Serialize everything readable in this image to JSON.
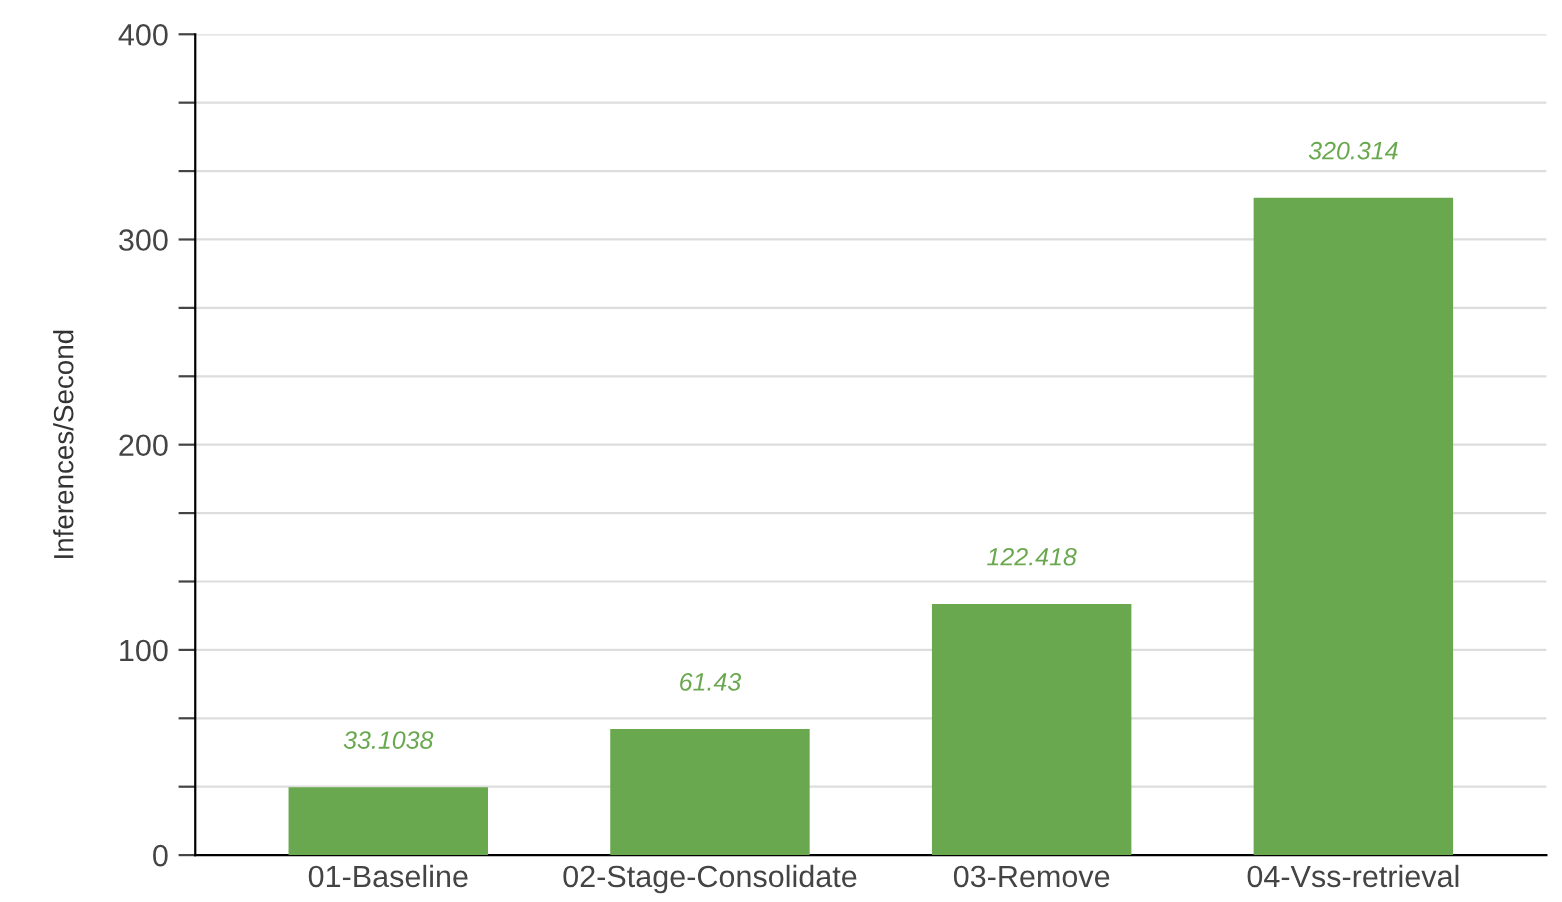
{
  "chart_data": {
    "type": "bar",
    "ylabel": "Inferences/Second",
    "categories": [
      "01-Baseline",
      "02-Stage-Consolidate",
      "03-Remove",
      "04-Vss-retrieval"
    ],
    "values": [
      33.1038,
      61.43,
      122.418,
      320.314
    ],
    "color": "#6aa84f",
    "data_labels": true,
    "ylim": [
      0,
      400
    ],
    "yticks": [
      0,
      {
        "value": 33.33,
        "label": null
      },
      {
        "value": 66.67,
        "label": null
      },
      100,
      {
        "value": 133.33,
        "label": null
      },
      {
        "value": 166.67,
        "label": null
      },
      200,
      {
        "value": 233.33,
        "label": null
      },
      {
        "value": 266.67,
        "label": null
      },
      300,
      {
        "value": 333.33,
        "label": null
      },
      {
        "value": 366.67,
        "label": null
      },
      400
    ],
    "grid": "y"
  }
}
